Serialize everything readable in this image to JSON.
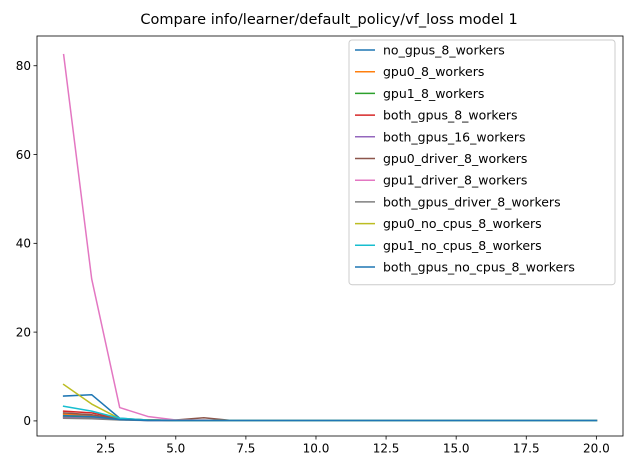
{
  "chart_data": {
    "type": "line",
    "title": "Compare info/learner/default_policy/vf_loss model 1",
    "xlabel": "",
    "ylabel": "",
    "xlim": [
      0.05,
      20.95
    ],
    "ylim": [
      -3.4,
      86.7
    ],
    "xticks": [
      2.5,
      5.0,
      7.5,
      10.0,
      12.5,
      15.0,
      17.5,
      20.0
    ],
    "xtick_labels": [
      "2.5",
      "5.0",
      "7.5",
      "10.0",
      "12.5",
      "15.0",
      "17.5",
      "20.0"
    ],
    "yticks": [
      0,
      20,
      40,
      60,
      80
    ],
    "ytick_labels": [
      "0",
      "20",
      "40",
      "60",
      "80"
    ],
    "grid": false,
    "legend_position": "upper right",
    "x": [
      1,
      2,
      3,
      4,
      5,
      6,
      7,
      8,
      9,
      10,
      11,
      12,
      13,
      14,
      15,
      16,
      17,
      18,
      19,
      20
    ],
    "series": [
      {
        "name": "no_gpus_8_workers",
        "color": "#1f77b4",
        "values": [
          5.6,
          5.9,
          0.6,
          0.2,
          0.1,
          0.1,
          0.1,
          0.1,
          0.1,
          0.1,
          0.1,
          0.1,
          0.1,
          0.1,
          0.1,
          0.1,
          0.1,
          0.1,
          0.1,
          0.1
        ]
      },
      {
        "name": "gpu0_8_workers",
        "color": "#ff7f0e",
        "values": [
          1.5,
          1.2,
          0.4,
          0.2,
          0.1,
          0.1,
          0.1,
          0.1,
          0.1,
          0.1,
          0.1,
          0.1,
          0.1,
          0.1,
          0.1,
          0.1,
          0.1,
          0.1,
          0.1,
          0.1
        ]
      },
      {
        "name": "gpu1_8_workers",
        "color": "#2ca02c",
        "values": [
          1.0,
          0.8,
          0.3,
          0.2,
          0.1,
          0.1,
          0.1,
          0.1,
          0.1,
          0.1,
          0.1,
          0.1,
          0.1,
          0.1,
          0.1,
          0.1,
          0.1,
          0.1,
          0.1,
          0.1
        ]
      },
      {
        "name": "both_gpus_8_workers",
        "color": "#d62728",
        "values": [
          2.2,
          1.8,
          0.5,
          0.2,
          0.1,
          0.1,
          0.1,
          0.1,
          0.1,
          0.1,
          0.1,
          0.1,
          0.1,
          0.1,
          0.1,
          0.1,
          0.1,
          0.1,
          0.1,
          0.1
        ]
      },
      {
        "name": "both_gpus_16_workers",
        "color": "#9467bd",
        "values": [
          0.8,
          0.6,
          0.3,
          0.1,
          0.1,
          0.1,
          0.1,
          0.1,
          0.1,
          0.1,
          0.1,
          0.1,
          0.1,
          0.1,
          0.1,
          0.1,
          0.1,
          0.1,
          0.1,
          0.1
        ]
      },
      {
        "name": "gpu0_driver_8_workers",
        "color": "#8c564b",
        "values": [
          1.8,
          1.4,
          0.4,
          0.2,
          0.2,
          0.7,
          0.1,
          0.1,
          0.1,
          0.1,
          0.1,
          0.1,
          0.1,
          0.1,
          0.1,
          0.1,
          0.1,
          0.1,
          0.1,
          0.1
        ]
      },
      {
        "name": "gpu1_driver_8_workers",
        "color": "#e377c2",
        "values": [
          82.5,
          32.0,
          3.0,
          1.0,
          0.2,
          0.2,
          0.1,
          0.1,
          0.1,
          0.1,
          0.1,
          0.1,
          0.1,
          0.1,
          0.1,
          0.1,
          0.1,
          0.1,
          0.1,
          0.1
        ]
      },
      {
        "name": "both_gpus_driver_8_workers",
        "color": "#7f7f7f",
        "values": [
          0.6,
          0.5,
          0.2,
          0.1,
          0.1,
          0.1,
          0.1,
          0.1,
          0.1,
          0.1,
          0.1,
          0.1,
          0.1,
          0.1,
          0.1,
          0.1,
          0.1,
          0.1,
          0.1,
          0.1
        ]
      },
      {
        "name": "gpu0_no_cpus_8_workers",
        "color": "#bcbd22",
        "values": [
          8.2,
          3.8,
          0.5,
          0.2,
          0.1,
          0.1,
          0.1,
          0.1,
          0.1,
          0.1,
          0.1,
          0.1,
          0.1,
          0.1,
          0.1,
          0.1,
          0.1,
          0.1,
          0.1,
          0.1
        ]
      },
      {
        "name": "gpu1_no_cpus_8_workers",
        "color": "#17becf",
        "values": [
          3.3,
          2.2,
          0.6,
          0.2,
          0.1,
          0.1,
          0.1,
          0.1,
          0.1,
          0.1,
          0.1,
          0.1,
          0.1,
          0.1,
          0.1,
          0.1,
          0.1,
          0.1,
          0.1,
          0.1
        ]
      },
      {
        "name": "both_gpus_no_cpus_8_workers",
        "color": "#1f77b4",
        "values": [
          1.2,
          1.0,
          0.3,
          0.1,
          0.1,
          0.1,
          0.1,
          0.1,
          0.1,
          0.1,
          0.1,
          0.1,
          0.1,
          0.1,
          0.1,
          0.1,
          0.1,
          0.1,
          0.1,
          0.1
        ]
      }
    ]
  }
}
